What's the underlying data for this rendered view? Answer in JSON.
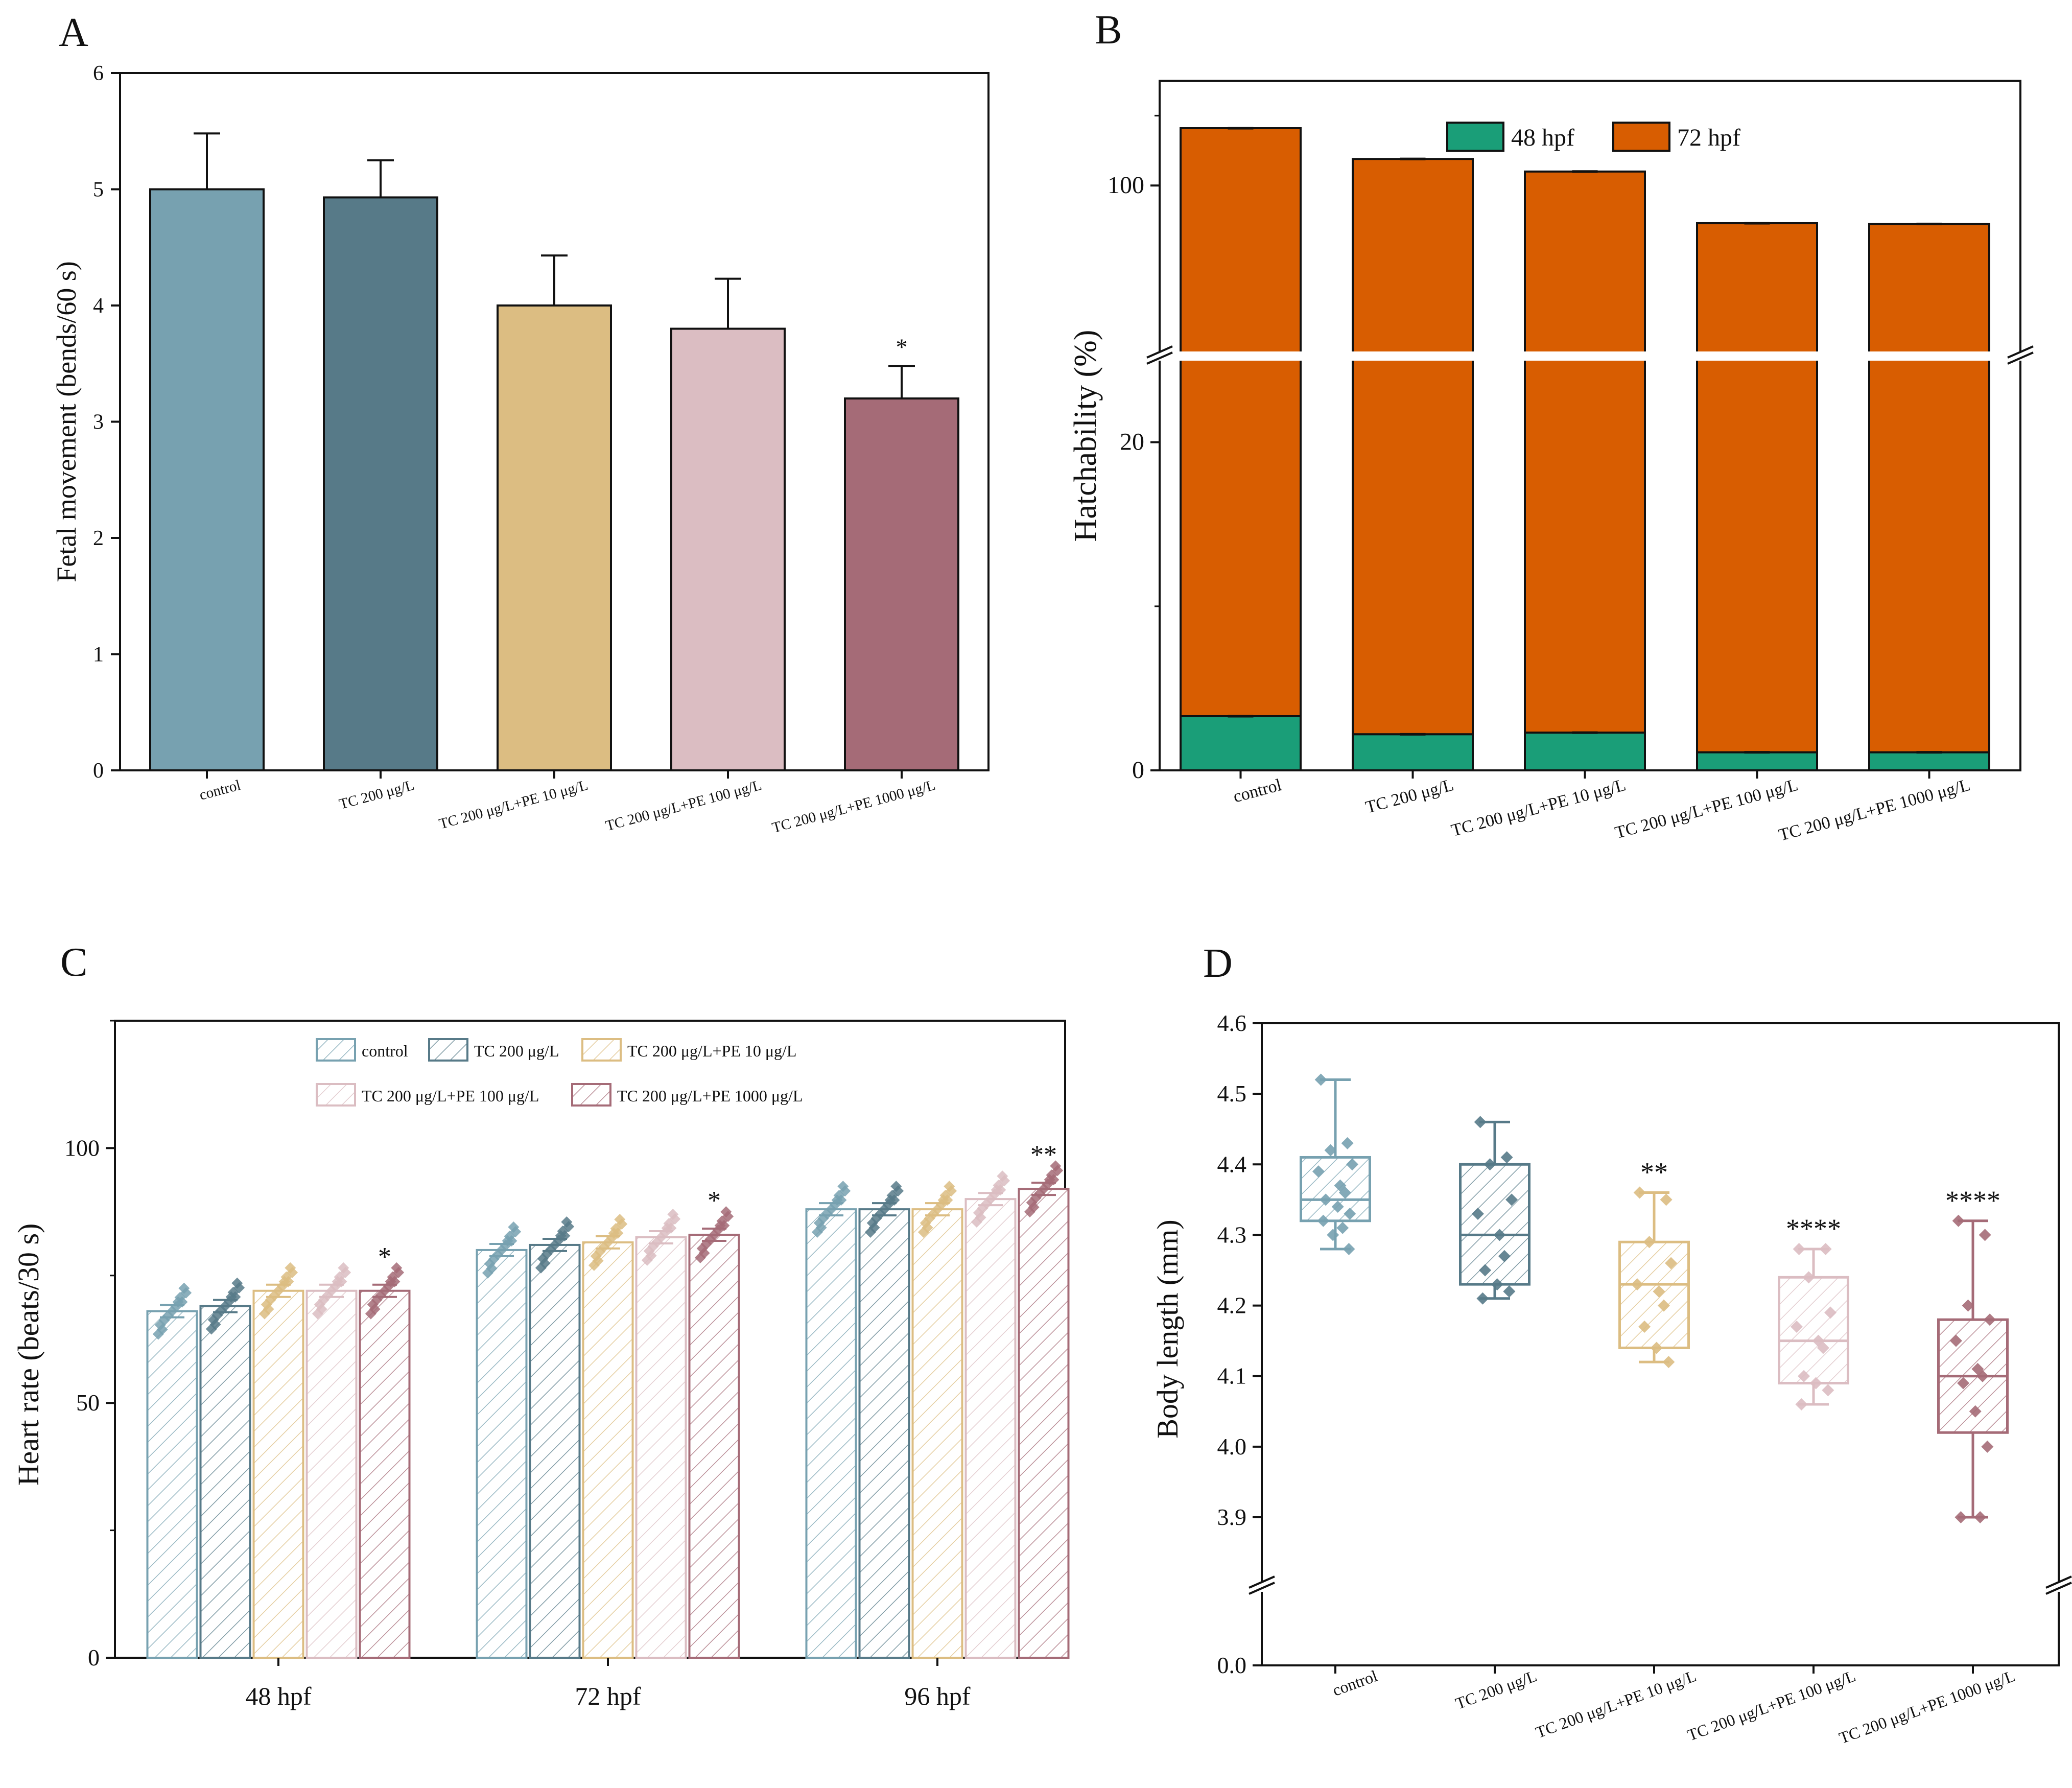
{
  "groups": [
    "control",
    "TC 200 μg/L",
    "TC 200 μg/L+PE 10 μg/L",
    "TC 200 μg/L+PE 100 μg/L",
    "TC 200 μg/L+PE 1000 μg/L"
  ],
  "colors": {
    "control": "#77a1b0",
    "tc200": "#577a88",
    "pe10": "#dcbd82",
    "pe100": "#dbbdc2",
    "pe1000": "#a56b77",
    "hatch48": "#1a9e78",
    "hatch72": "#d85d01"
  },
  "chart_data": [
    {
      "panel": "A",
      "type": "bar",
      "ylabel": "Fetal movement (bends/60 s)",
      "ylim": [
        0,
        6
      ],
      "yticks": [
        "0",
        "1",
        "2",
        "3",
        "4",
        "5",
        "6"
      ],
      "categories": [
        "control",
        "TC 200 μg/L",
        "TC 200 μg/L+PE 10 μg/L",
        "TC 200 μg/L+PE 100 μg/L",
        "TC 200 μg/L+PE 1000 μg/L"
      ],
      "values": [
        5.0,
        4.93,
        4.0,
        3.8,
        3.2
      ],
      "errors": [
        0.48,
        0.32,
        0.43,
        0.43,
        0.28
      ],
      "significance": [
        "",
        "",
        "",
        "",
        "*"
      ]
    },
    {
      "panel": "B",
      "type": "bar",
      "ylabel": "Hatchability (%)",
      "yticks": [
        "0",
        "20",
        "100"
      ],
      "broken_axis": true,
      "legend": [
        "48 hpf",
        "72 hpf"
      ],
      "categories": [
        "control",
        "TC 200 μg/L",
        "TC 200 μg/L+PE 10 μg/L",
        "TC 200 μg/L+PE 100 μg/L",
        "TC 200 μg/L+PE 1000 μg/L"
      ],
      "series": [
        {
          "name": "48 hpf",
          "values": [
            3.3,
            2.2,
            2.3,
            1.1,
            1.1
          ]
        },
        {
          "name": "72 hpf",
          "values": [
            108.2,
            103.8,
            102.0,
            94.6,
            94.5
          ]
        }
      ]
    },
    {
      "panel": "C",
      "type": "bar",
      "ylabel": "Heart rate (beats/30 s)",
      "ylim": [
        0,
        125
      ],
      "yticks": [
        "0",
        "50",
        "100"
      ],
      "categories": [
        "48 hpf",
        "72 hpf",
        "96 hpf"
      ],
      "legend": [
        "control",
        "TC 200 μg/L",
        "TC 200 μg/L+PE 10 μg/L",
        "TC 200 μg/L+PE 100 μg/L",
        "TC 200 μg/L+PE 1000 μg/L"
      ],
      "series": [
        {
          "name": "control",
          "values": [
            68,
            80,
            88
          ]
        },
        {
          "name": "TC 200 μg/L",
          "values": [
            69,
            81,
            88
          ]
        },
        {
          "name": "TC 200 μg/L+PE 10 μg/L",
          "values": [
            72,
            81.5,
            88
          ]
        },
        {
          "name": "TC 200 μg/L+PE 100 μg/L",
          "values": [
            72,
            82.5,
            90
          ]
        },
        {
          "name": "TC 200 μg/L+PE 1000 μg/L",
          "values": [
            72,
            83,
            92
          ]
        }
      ],
      "significance": [
        [
          "",
          "",
          "",
          "",
          "*"
        ],
        [
          "",
          "",
          "",
          "",
          "*"
        ],
        [
          "",
          "",
          "",
          "",
          "**"
        ]
      ]
    },
    {
      "panel": "D",
      "type": "box",
      "ylabel": "Body length (mm)",
      "yticks": [
        "0.0",
        "3.9",
        "4.0",
        "4.1",
        "4.2",
        "4.3",
        "4.4",
        "4.5",
        "4.6"
      ],
      "broken_axis": true,
      "categories": [
        "control",
        "TC 200 μg/L",
        "TC 200 μg/L+PE 10 μg/L",
        "TC 200 μg/L+PE 100 μg/L",
        "TC 200 μg/L+PE 1000 μg/L"
      ],
      "boxes": [
        {
          "min": 4.28,
          "q1": 4.32,
          "median": 4.35,
          "q3": 4.41,
          "max": 4.52,
          "points": [
            4.52,
            4.43,
            4.42,
            4.4,
            4.39,
            4.37,
            4.36,
            4.35,
            4.34,
            4.33,
            4.32,
            4.31,
            4.3,
            4.28
          ]
        },
        {
          "min": 4.21,
          "q1": 4.23,
          "median": 4.3,
          "q3": 4.4,
          "max": 4.46,
          "points": [
            4.46,
            4.41,
            4.4,
            4.35,
            4.33,
            4.3,
            4.27,
            4.25,
            4.23,
            4.22,
            4.21
          ]
        },
        {
          "min": 4.12,
          "q1": 4.14,
          "median": 4.23,
          "q3": 4.29,
          "max": 4.36,
          "points": [
            4.36,
            4.35,
            4.29,
            4.26,
            4.23,
            4.22,
            4.2,
            4.17,
            4.14,
            4.12
          ]
        },
        {
          "min": 4.06,
          "q1": 4.09,
          "median": 4.15,
          "q3": 4.24,
          "max": 4.28,
          "points": [
            4.28,
            4.28,
            4.24,
            4.19,
            4.17,
            4.15,
            4.14,
            4.1,
            4.09,
            4.08,
            4.06
          ]
        },
        {
          "min": 3.9,
          "q1": 4.02,
          "median": 4.1,
          "q3": 4.18,
          "max": 4.32,
          "points": [
            4.32,
            4.3,
            4.2,
            4.18,
            4.15,
            4.11,
            4.1,
            4.09,
            4.05,
            4.0,
            3.9,
            3.9
          ]
        }
      ],
      "significance": [
        "",
        "",
        "**",
        "****",
        "****"
      ]
    }
  ],
  "panel_labels": {
    "a": "A",
    "b": "B",
    "c": "C",
    "d": "D"
  }
}
